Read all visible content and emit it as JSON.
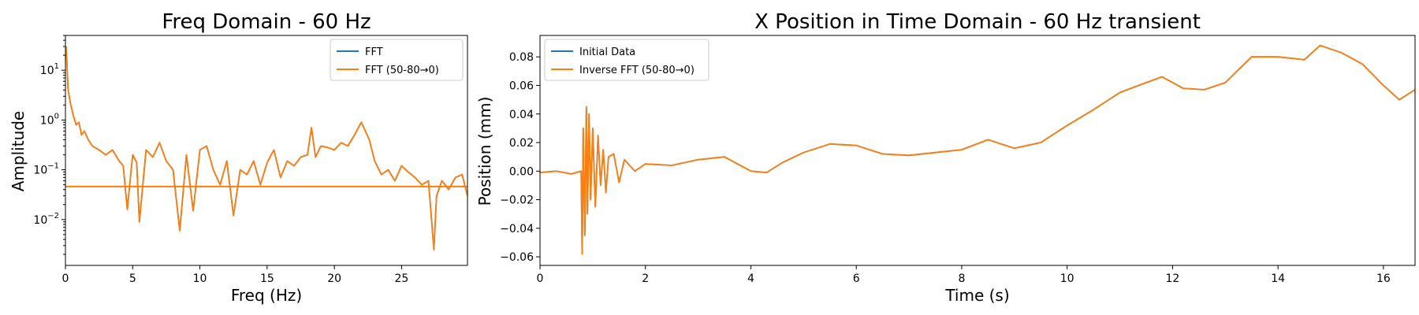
{
  "chart_data": [
    {
      "type": "line",
      "title": "Freq Domain - 60 Hz",
      "xlabel": "Freq (Hz)",
      "ylabel": "Amplitude",
      "yscale": "log",
      "xlim": [
        0,
        29.9
      ],
      "ylim": [
        0.0012,
        50
      ],
      "x_ticks": [
        "0",
        "5",
        "10",
        "15",
        "20",
        "25"
      ],
      "y_ticks": [
        "10",
        "1",
        "0.1",
        "0.01"
      ],
      "y_tick_labels": [
        {
          "base": "10",
          "exp": "1"
        },
        {
          "base": "10",
          "exp": "0"
        },
        {
          "base": "10",
          "exp": "−1"
        },
        {
          "base": "10",
          "exp": "−2"
        }
      ],
      "legend_position": "top-right",
      "series": [
        {
          "name": "FFT",
          "color": "#1f77b4",
          "x": [
            0.05,
            0.2,
            0.4,
            0.6,
            0.8,
            1.0,
            1.2,
            1.4,
            1.7,
            2.0,
            2.5,
            3.0,
            3.5,
            4.0,
            4.3,
            4.6,
            5.0,
            5.3,
            5.5,
            6.0,
            6.5,
            7.0,
            7.5,
            8.0,
            8.5,
            9.0,
            9.5,
            10.0,
            10.5,
            11.0,
            11.5,
            12.0,
            12.5,
            13.0,
            13.5,
            14.0,
            14.5,
            15.0,
            15.5,
            16.0,
            16.5,
            17.0,
            17.5,
            18.0,
            18.3,
            18.6,
            19.0,
            19.5,
            20.0,
            20.5,
            21.0,
            21.5,
            22.0,
            22.3,
            22.6,
            23.0,
            23.5,
            24.0,
            24.5,
            25.0,
            25.5,
            26.0,
            26.5,
            27.0,
            27.4,
            27.6,
            28.0,
            28.5,
            29.0,
            29.5,
            29.9
          ],
          "y": [
            30,
            4,
            2.0,
            1.2,
            0.8,
            0.9,
            0.5,
            0.6,
            0.4,
            0.3,
            0.25,
            0.2,
            0.25,
            0.15,
            0.12,
            0.016,
            0.2,
            0.14,
            0.009,
            0.25,
            0.18,
            0.35,
            0.15,
            0.1,
            0.006,
            0.2,
            0.015,
            0.25,
            0.3,
            0.1,
            0.05,
            0.15,
            0.012,
            0.1,
            0.08,
            0.15,
            0.05,
            0.14,
            0.25,
            0.07,
            0.15,
            0.12,
            0.18,
            0.2,
            0.7,
            0.18,
            0.3,
            0.28,
            0.25,
            0.35,
            0.3,
            0.5,
            0.9,
            0.6,
            0.4,
            0.15,
            0.08,
            0.1,
            0.06,
            0.12,
            0.09,
            0.07,
            0.05,
            0.06,
            0.0025,
            0.03,
            0.06,
            0.04,
            0.07,
            0.08,
            0.03
          ]
        },
        {
          "name": "FFT (50-80→0)",
          "color": "#ff7f0e",
          "x": [
            0.05,
            0.2,
            0.4,
            0.6,
            0.8,
            1.0,
            1.2,
            1.4,
            1.7,
            2.0,
            2.5,
            3.0,
            3.5,
            4.0,
            4.3,
            4.6,
            5.0,
            5.3,
            5.5,
            6.0,
            6.5,
            7.0,
            7.5,
            8.0,
            8.5,
            9.0,
            9.5,
            10.0,
            10.5,
            11.0,
            11.5,
            12.0,
            12.5,
            13.0,
            13.5,
            14.0,
            14.5,
            15.0,
            15.5,
            16.0,
            16.5,
            17.0,
            17.5,
            18.0,
            18.3,
            18.6,
            19.0,
            19.5,
            20.0,
            20.5,
            21.0,
            21.5,
            22.0,
            22.3,
            22.6,
            23.0,
            23.5,
            24.0,
            24.5,
            25.0,
            25.5,
            26.0,
            26.5,
            27.0,
            27.4,
            27.6,
            28.0,
            28.5,
            29.0,
            29.5,
            29.9
          ],
          "y": [
            30,
            4,
            2.0,
            1.2,
            0.8,
            0.9,
            0.5,
            0.6,
            0.4,
            0.3,
            0.25,
            0.2,
            0.25,
            0.15,
            0.12,
            0.016,
            0.2,
            0.14,
            0.009,
            0.25,
            0.18,
            0.35,
            0.15,
            0.1,
            0.006,
            0.2,
            0.015,
            0.25,
            0.3,
            0.1,
            0.05,
            0.15,
            0.012,
            0.1,
            0.08,
            0.15,
            0.05,
            0.14,
            0.25,
            0.07,
            0.15,
            0.12,
            0.18,
            0.2,
            0.7,
            0.18,
            0.3,
            0.28,
            0.25,
            0.35,
            0.3,
            0.5,
            0.9,
            0.6,
            0.4,
            0.15,
            0.08,
            0.1,
            0.06,
            0.12,
            0.09,
            0.07,
            0.05,
            0.06,
            0.0025,
            0.03,
            0.06,
            0.04,
            0.07,
            0.08,
            0.03
          ]
        }
      ],
      "reference_line": {
        "y": 0.046,
        "color": "#ff7f0e"
      }
    },
    {
      "type": "line",
      "title": "X Position in Time Domain - 60 Hz transient",
      "xlabel": "Time (s)",
      "ylabel": "Position (mm)",
      "xlim": [
        0,
        16.6
      ],
      "ylim": [
        -0.066,
        0.095
      ],
      "x_ticks": [
        "0",
        "2",
        "4",
        "6",
        "8",
        "10",
        "12",
        "14",
        "16"
      ],
      "y_ticks": [
        "0.08",
        "0.06",
        "0.04",
        "0.02",
        "0.00",
        "−0.02",
        "−0.04",
        "−0.06"
      ],
      "legend_position": "top-left",
      "series": [
        {
          "name": "Initial Data",
          "color": "#1f77b4",
          "x": [
            0.0,
            0.3,
            0.6,
            0.78,
            0.8,
            0.82,
            0.85,
            0.88,
            0.9,
            0.93,
            0.96,
            1.0,
            1.05,
            1.1,
            1.15,
            1.2,
            1.25,
            1.3,
            1.4,
            1.5,
            1.6,
            1.8,
            2.0,
            2.5,
            3.0,
            3.5,
            4.0,
            4.3,
            4.6,
            5.0,
            5.5,
            6.0,
            6.5,
            7.0,
            7.5,
            8.0,
            8.5,
            9.0,
            9.5,
            10.0,
            10.5,
            11.0,
            11.5,
            11.8,
            12.2,
            12.6,
            13.0,
            13.5,
            14.0,
            14.5,
            14.8,
            15.2,
            15.6,
            16.0,
            16.3,
            16.6
          ],
          "y": [
            -0.001,
            0.0,
            -0.002,
            0.0,
            -0.058,
            0.03,
            -0.045,
            0.045,
            -0.03,
            0.04,
            -0.02,
            0.03,
            -0.025,
            0.025,
            -0.01,
            0.015,
            -0.015,
            0.01,
            0.012,
            -0.008,
            0.008,
            0.0,
            0.005,
            0.004,
            0.008,
            0.01,
            0.0,
            -0.001,
            0.006,
            0.013,
            0.019,
            0.018,
            0.012,
            0.011,
            0.013,
            0.015,
            0.022,
            0.016,
            0.02,
            0.032,
            0.043,
            0.055,
            0.062,
            0.066,
            0.058,
            0.057,
            0.062,
            0.08,
            0.08,
            0.078,
            0.088,
            0.083,
            0.075,
            0.06,
            0.05,
            0.057
          ]
        },
        {
          "name": "Inverse FFT (50-80→0)",
          "color": "#ff7f0e",
          "x": [
            0.0,
            0.3,
            0.6,
            0.78,
            0.8,
            0.82,
            0.85,
            0.88,
            0.9,
            0.93,
            0.96,
            1.0,
            1.05,
            1.1,
            1.15,
            1.2,
            1.25,
            1.3,
            1.4,
            1.5,
            1.6,
            1.8,
            2.0,
            2.5,
            3.0,
            3.5,
            4.0,
            4.3,
            4.6,
            5.0,
            5.5,
            6.0,
            6.5,
            7.0,
            7.5,
            8.0,
            8.5,
            9.0,
            9.5,
            10.0,
            10.5,
            11.0,
            11.5,
            11.8,
            12.2,
            12.6,
            13.0,
            13.5,
            14.0,
            14.5,
            14.8,
            15.2,
            15.6,
            16.0,
            16.3,
            16.6
          ],
          "y": [
            -0.001,
            0.0,
            -0.002,
            0.0,
            -0.058,
            0.03,
            -0.045,
            0.045,
            -0.03,
            0.04,
            -0.02,
            0.03,
            -0.025,
            0.025,
            -0.01,
            0.015,
            -0.015,
            0.01,
            0.012,
            -0.008,
            0.008,
            0.0,
            0.005,
            0.004,
            0.008,
            0.01,
            0.0,
            -0.001,
            0.006,
            0.013,
            0.019,
            0.018,
            0.012,
            0.011,
            0.013,
            0.015,
            0.022,
            0.016,
            0.02,
            0.032,
            0.043,
            0.055,
            0.062,
            0.066,
            0.058,
            0.057,
            0.062,
            0.08,
            0.08,
            0.078,
            0.088,
            0.083,
            0.075,
            0.06,
            0.05,
            0.057
          ]
        }
      ]
    }
  ]
}
